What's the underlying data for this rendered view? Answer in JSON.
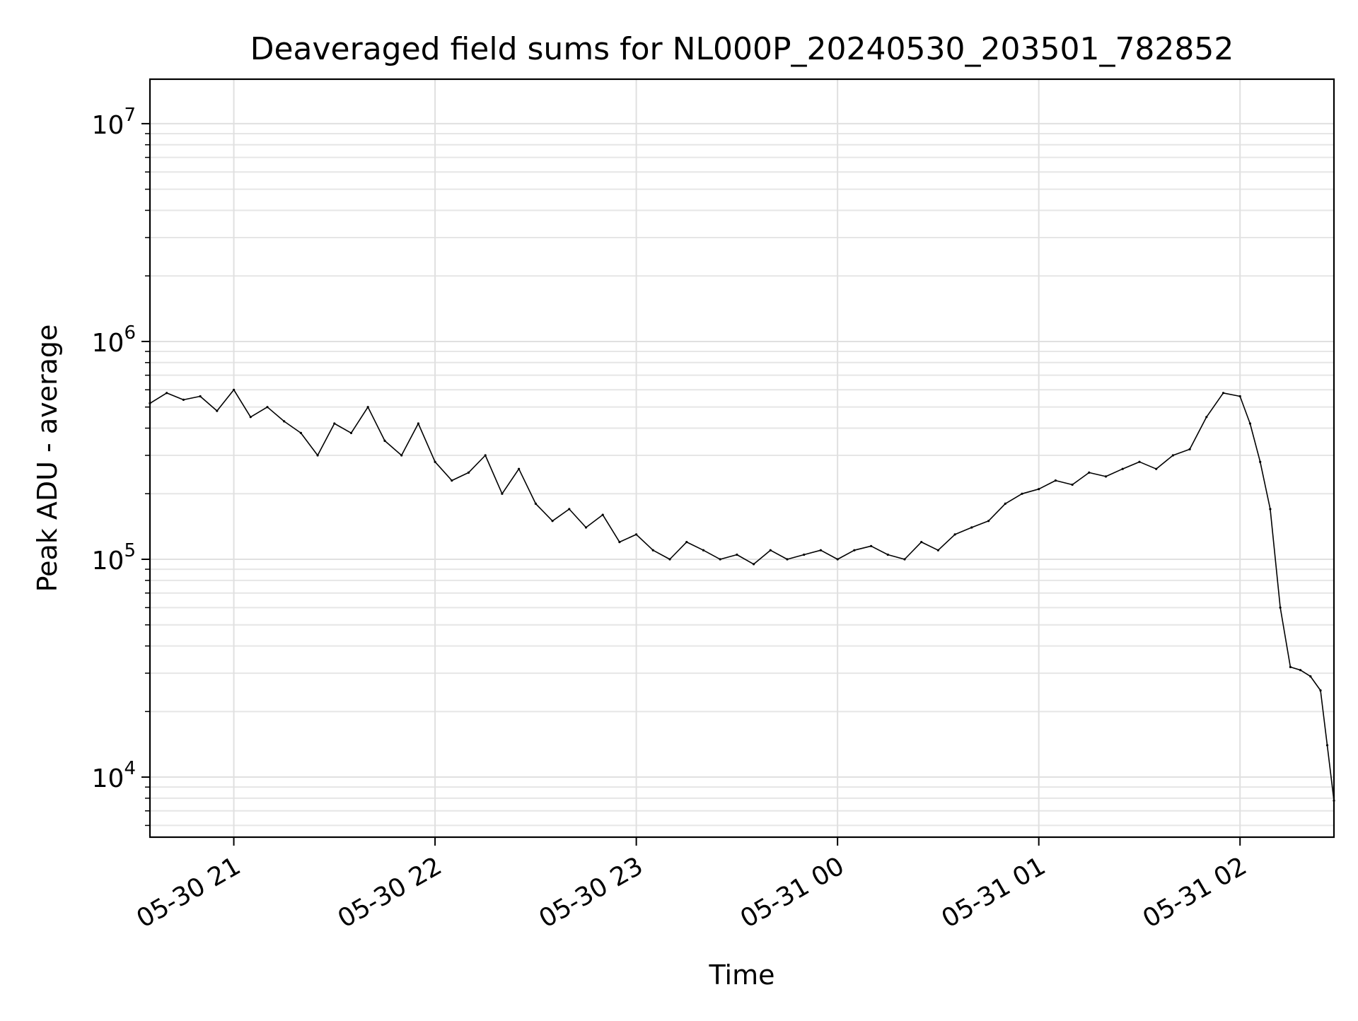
{
  "chart_data": {
    "type": "line",
    "title": "Deaveraged field sums for NL000P_20240530_203501_782852",
    "xlabel": "Time",
    "ylabel": "Peak ADU - average",
    "x_range": [
      "2024-05-30 20:35",
      "2024-05-31 02:28"
    ],
    "y_range": [
      5300,
      16000000
    ],
    "y_scale": "log",
    "grid": true,
    "legend": "none",
    "line_color": "#000000",
    "x_ticks": [
      {
        "time": "2024-05-30 21:00",
        "label": "05-30 21"
      },
      {
        "time": "2024-05-30 22:00",
        "label": "05-30 22"
      },
      {
        "time": "2024-05-30 23:00",
        "label": "05-30 23"
      },
      {
        "time": "2024-05-31 00:00",
        "label": "05-31 00"
      },
      {
        "time": "2024-05-31 01:00",
        "label": "05-31 01"
      },
      {
        "time": "2024-05-31 02:00",
        "label": "05-31 02"
      }
    ],
    "y_ticks": [
      {
        "value": 10000,
        "base": "10",
        "exp": "4"
      },
      {
        "value": 100000,
        "base": "10",
        "exp": "5"
      },
      {
        "value": 1000000,
        "base": "10",
        "exp": "6"
      },
      {
        "value": 10000000,
        "base": "10",
        "exp": "7"
      }
    ],
    "series": [
      {
        "points": [
          [
            "2024-05-30 20:35",
            520000
          ],
          [
            "2024-05-30 20:40",
            580000
          ],
          [
            "2024-05-30 20:45",
            540000
          ],
          [
            "2024-05-30 20:50",
            560000
          ],
          [
            "2024-05-30 20:55",
            480000
          ],
          [
            "2024-05-30 21:00",
            600000
          ],
          [
            "2024-05-30 21:05",
            450000
          ],
          [
            "2024-05-30 21:10",
            500000
          ],
          [
            "2024-05-30 21:15",
            430000
          ],
          [
            "2024-05-30 21:20",
            380000
          ],
          [
            "2024-05-30 21:25",
            300000
          ],
          [
            "2024-05-30 21:30",
            420000
          ],
          [
            "2024-05-30 21:35",
            380000
          ],
          [
            "2024-05-30 21:40",
            500000
          ],
          [
            "2024-05-30 21:45",
            350000
          ],
          [
            "2024-05-30 21:50",
            300000
          ],
          [
            "2024-05-30 21:55",
            420000
          ],
          [
            "2024-05-30 22:00",
            280000
          ],
          [
            "2024-05-30 22:05",
            230000
          ],
          [
            "2024-05-30 22:10",
            250000
          ],
          [
            "2024-05-30 22:15",
            300000
          ],
          [
            "2024-05-30 22:20",
            200000
          ],
          [
            "2024-05-30 22:25",
            260000
          ],
          [
            "2024-05-30 22:30",
            180000
          ],
          [
            "2024-05-30 22:35",
            150000
          ],
          [
            "2024-05-30 22:40",
            170000
          ],
          [
            "2024-05-30 22:45",
            140000
          ],
          [
            "2024-05-30 22:50",
            160000
          ],
          [
            "2024-05-30 22:55",
            120000
          ],
          [
            "2024-05-30 23:00",
            130000
          ],
          [
            "2024-05-30 23:05",
            110000
          ],
          [
            "2024-05-30 23:10",
            100000
          ],
          [
            "2024-05-30 23:15",
            120000
          ],
          [
            "2024-05-30 23:20",
            110000
          ],
          [
            "2024-05-30 23:25",
            100000
          ],
          [
            "2024-05-30 23:30",
            105000
          ],
          [
            "2024-05-30 23:35",
            95000
          ],
          [
            "2024-05-30 23:40",
            110000
          ],
          [
            "2024-05-30 23:45",
            100000
          ],
          [
            "2024-05-30 23:50",
            105000
          ],
          [
            "2024-05-30 23:55",
            110000
          ],
          [
            "2024-05-31 00:00",
            100000
          ],
          [
            "2024-05-31 00:05",
            110000
          ],
          [
            "2024-05-31 00:10",
            115000
          ],
          [
            "2024-05-31 00:15",
            105000
          ],
          [
            "2024-05-31 00:20",
            100000
          ],
          [
            "2024-05-31 00:25",
            120000
          ],
          [
            "2024-05-31 00:30",
            110000
          ],
          [
            "2024-05-31 00:35",
            130000
          ],
          [
            "2024-05-31 00:40",
            140000
          ],
          [
            "2024-05-31 00:45",
            150000
          ],
          [
            "2024-05-31 00:50",
            180000
          ],
          [
            "2024-05-31 00:55",
            200000
          ],
          [
            "2024-05-31 01:00",
            210000
          ],
          [
            "2024-05-31 01:05",
            230000
          ],
          [
            "2024-05-31 01:10",
            220000
          ],
          [
            "2024-05-31 01:15",
            250000
          ],
          [
            "2024-05-31 01:20",
            240000
          ],
          [
            "2024-05-31 01:25",
            260000
          ],
          [
            "2024-05-31 01:30",
            280000
          ],
          [
            "2024-05-31 01:35",
            260000
          ],
          [
            "2024-05-31 01:40",
            300000
          ],
          [
            "2024-05-31 01:45",
            320000
          ],
          [
            "2024-05-31 01:50",
            450000
          ],
          [
            "2024-05-31 01:55",
            580000
          ],
          [
            "2024-05-31 02:00",
            560000
          ],
          [
            "2024-05-31 02:03",
            420000
          ],
          [
            "2024-05-31 02:06",
            280000
          ],
          [
            "2024-05-31 02:09",
            170000
          ],
          [
            "2024-05-31 02:12",
            60000
          ],
          [
            "2024-05-31 02:15",
            32000
          ],
          [
            "2024-05-31 02:18",
            31000
          ],
          [
            "2024-05-31 02:21",
            29000
          ],
          [
            "2024-05-31 02:24",
            25000
          ],
          [
            "2024-05-31 02:26",
            14000
          ],
          [
            "2024-05-31 02:28",
            7800
          ]
        ]
      }
    ]
  }
}
